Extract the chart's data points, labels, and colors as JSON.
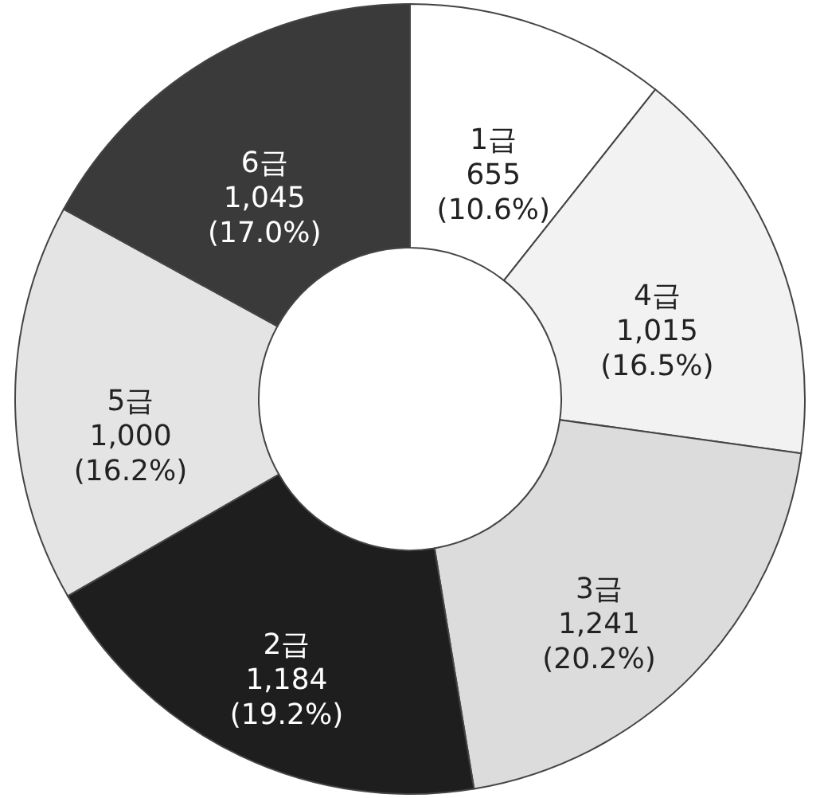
{
  "chart_data": {
    "type": "donut",
    "categories": [
      "1급",
      "4급",
      "3급",
      "2급",
      "5급",
      "6급"
    ],
    "values": [
      655,
      1015,
      1241,
      1184,
      1000,
      1045
    ],
    "colors": [
      "#ffffff",
      "#f2f2f2",
      "#dcdcdc",
      "#1e1e1e",
      "#e4e4e4",
      "#3a3a3a"
    ],
    "value_labels": [
      "655\n(10.6%)",
      "1,015\n(16.5%)",
      "1,241\n(20.2%)",
      "1,184\n(19.2%)",
      "1,000\n(16.2%)",
      "1,045\n(17.0%)"
    ]
  }
}
